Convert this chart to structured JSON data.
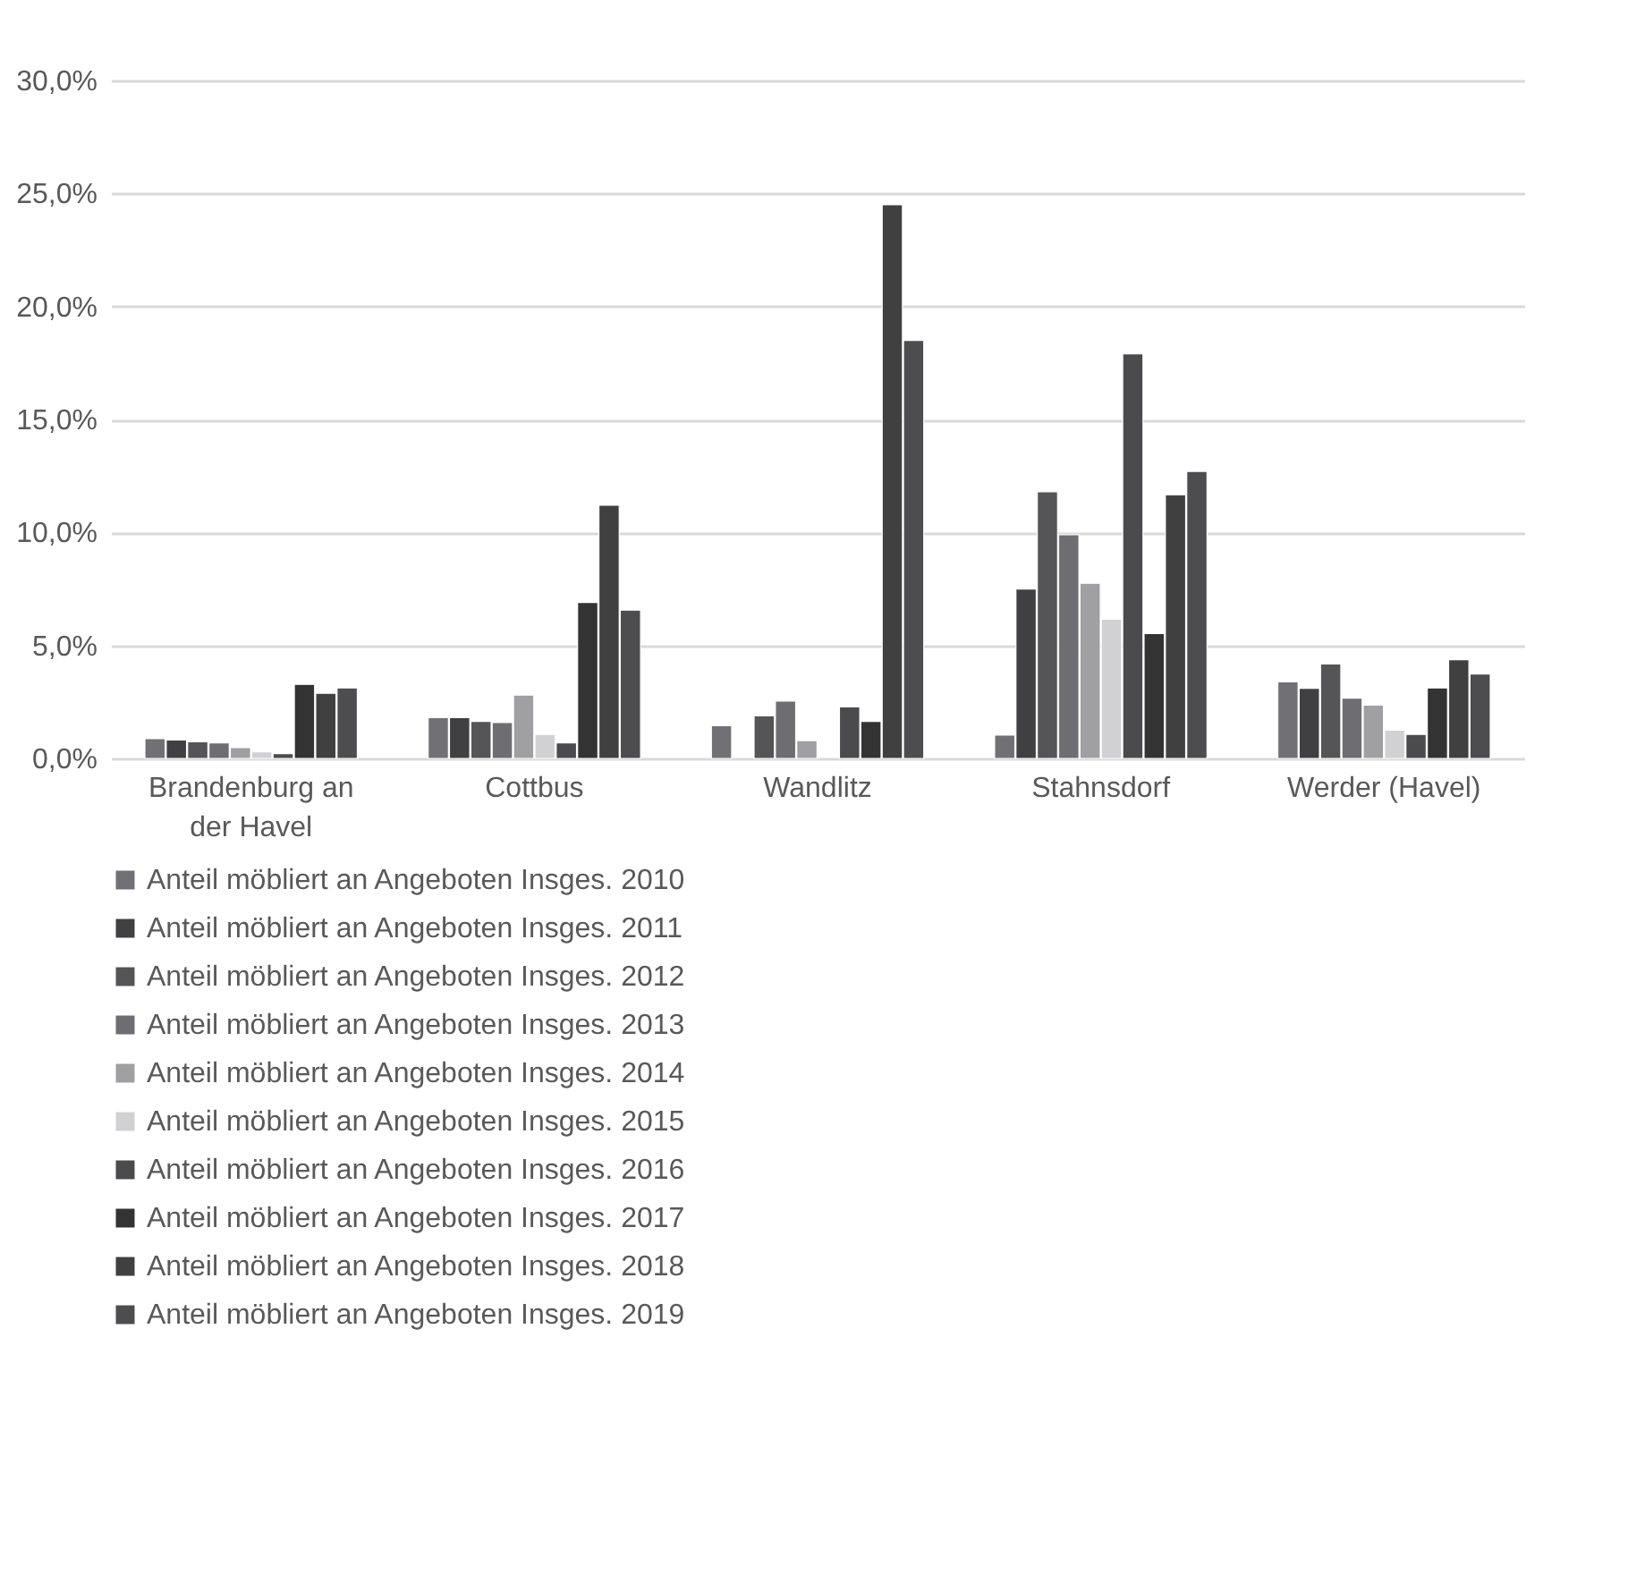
{
  "chart_data": {
    "type": "bar",
    "categories": [
      "Brandenburg an der Havel",
      "Cottbus",
      "Wandlitz",
      "Stahnsdorf",
      "Werder (Havel)"
    ],
    "series": [
      {
        "name": "Anteil möbliert an Angeboten Insges. 2010",
        "color": "#717175",
        "values": [
          0.87,
          1.8,
          1.45,
          1.03,
          3.39
        ]
      },
      {
        "name": "Anteil möbliert an Angeboten Insges. 2011",
        "color": "#404042",
        "values": [
          0.82,
          1.8,
          null,
          7.49,
          3.1
        ]
      },
      {
        "name": "Anteil möbliert an Angeboten Insges. 2012",
        "color": "#555557",
        "values": [
          0.74,
          1.64,
          1.88,
          11.8,
          4.18
        ]
      },
      {
        "name": "Anteil möbliert an Angeboten Insges. 2013",
        "color": "#6e6e72",
        "values": [
          0.69,
          1.59,
          2.54,
          9.9,
          2.67
        ]
      },
      {
        "name": "Anteil möbliert an Angeboten Insges. 2014",
        "color": "#a0a0a3",
        "values": [
          0.48,
          2.8,
          0.79,
          7.75,
          2.36
        ]
      },
      {
        "name": "Anteil möbliert an Angeboten Insges. 2015",
        "color": "#d1d1d3",
        "values": [
          0.29,
          1.06,
          null,
          6.16,
          1.25
        ]
      },
      {
        "name": "Anteil möbliert an Angeboten Insges. 2016",
        "color": "#4b4b4e",
        "values": [
          0.21,
          0.69,
          2.28,
          17.9,
          1.06
        ]
      },
      {
        "name": "Anteil möbliert an Angeboten Insges. 2017",
        "color": "#333333",
        "values": [
          3.28,
          6.9,
          1.64,
          5.53,
          3.12
        ]
      },
      {
        "name": "Anteil möbliert an Angeboten Insges. 2018",
        "color": "#404040",
        "values": [
          2.88,
          11.2,
          24.5,
          11.67,
          4.37
        ]
      },
      {
        "name": "Anteil möbliert an Angeboten Insges. 2019",
        "color": "#4d4d50",
        "values": [
          3.12,
          6.56,
          18.5,
          12.7,
          3.73
        ]
      }
    ],
    "ylim": [
      0,
      30
    ],
    "yticks": [
      {
        "value": 0,
        "label": "0,0%"
      },
      {
        "value": 5,
        "label": "5,0%"
      },
      {
        "value": 10,
        "label": "10,0%"
      },
      {
        "value": 15,
        "label": "15,0%"
      },
      {
        "value": 20,
        "label": "20,0%"
      },
      {
        "value": 25,
        "label": "25,0%"
      },
      {
        "value": 30,
        "label": "30,0%"
      }
    ],
    "grid": "y",
    "legend": "bottom"
  }
}
